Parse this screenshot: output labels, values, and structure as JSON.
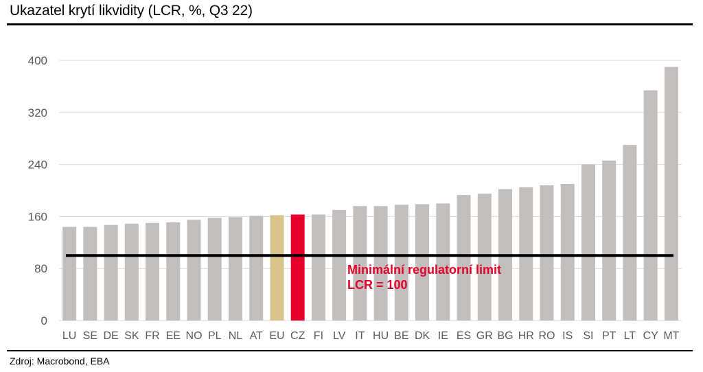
{
  "title": "Ukazatel krytí likvidity (LCR, %, Q3 22)",
  "source": "Zdroj: Macrobond, EBA",
  "chart_data": {
    "type": "bar",
    "title": "Ukazatel krytí likvidity (LCR, %, Q3 22)",
    "xlabel": "",
    "ylabel": "",
    "ylim": [
      0,
      400
    ],
    "yticks": [
      0,
      80,
      160,
      240,
      320,
      400
    ],
    "grid": true,
    "legend": "none",
    "categories": [
      "LU",
      "SE",
      "DE",
      "SK",
      "FR",
      "EE",
      "NO",
      "PL",
      "NL",
      "AT",
      "EU",
      "CZ",
      "FI",
      "LV",
      "IT",
      "HU",
      "BE",
      "DK",
      "IE",
      "ES",
      "GR",
      "BG",
      "HR",
      "RO",
      "IS",
      "SI",
      "PT",
      "LT",
      "CY",
      "MT"
    ],
    "values": [
      144,
      144,
      147,
      149,
      150,
      151,
      155,
      158,
      159,
      161,
      162,
      163,
      163,
      170,
      176,
      176,
      178,
      179,
      180,
      193,
      195,
      202,
      205,
      208,
      210,
      240,
      246,
      270,
      354,
      390
    ],
    "colors": {
      "default": "#c1bebd",
      "EU": "#d9c48e",
      "CZ": "#e4002b",
      "reference_line": "#000000",
      "gridline": "#d9d9d9"
    },
    "reference_line": {
      "value": 100,
      "label_lines": [
        "Minimální regulatorní limit",
        "LCR = 100"
      ]
    }
  }
}
